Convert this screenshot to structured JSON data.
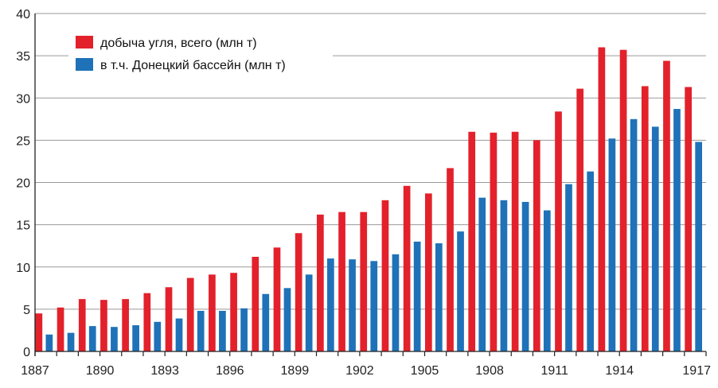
{
  "chart_data": {
    "type": "bar",
    "title": "",
    "xlabel": "",
    "ylabel": "",
    "ylim": [
      0,
      40
    ],
    "yticks": [
      0,
      5,
      10,
      15,
      20,
      25,
      30,
      35,
      40
    ],
    "xtick_labels": [
      "1887",
      "1890",
      "1893",
      "1896",
      "1899",
      "1902",
      "1905",
      "1908",
      "1911",
      "1914",
      "1917"
    ],
    "grid": true,
    "legend_position": "top-left",
    "categories": [
      "1887",
      "1888",
      "1889",
      "1890",
      "1891",
      "1892",
      "1893",
      "1894",
      "1895",
      "1896",
      "1897",
      "1898",
      "1899",
      "1900",
      "1901",
      "1902",
      "1903",
      "1904",
      "1905",
      "1906",
      "1907",
      "1908",
      "1909",
      "1910",
      "1911",
      "1912",
      "1913",
      "1914",
      "1915",
      "1916",
      "1917"
    ],
    "series": [
      {
        "name": "добыча угля, всего (млн т)",
        "color": "#e3212b",
        "values": [
          4.5,
          5.2,
          6.2,
          6.1,
          6.2,
          6.9,
          7.6,
          8.7,
          9.1,
          9.3,
          11.2,
          12.3,
          14.0,
          16.2,
          16.5,
          16.5,
          17.9,
          19.6,
          18.7,
          21.7,
          26.0,
          25.9,
          26.0,
          25.0,
          28.4,
          31.1,
          36.0,
          35.7,
          31.4,
          34.4,
          31.3
        ]
      },
      {
        "name": "в т.ч. Донецкий бассейн (млн т)",
        "color": "#1f72b8",
        "values": [
          2.0,
          2.2,
          3.0,
          2.9,
          3.1,
          3.5,
          3.9,
          4.8,
          4.8,
          5.1,
          6.8,
          7.5,
          9.1,
          11.0,
          10.9,
          10.7,
          11.5,
          13.0,
          12.8,
          14.2,
          18.2,
          17.9,
          17.7,
          16.7,
          19.8,
          21.3,
          25.2,
          27.5,
          26.6,
          28.7,
          24.8
        ]
      }
    ]
  }
}
